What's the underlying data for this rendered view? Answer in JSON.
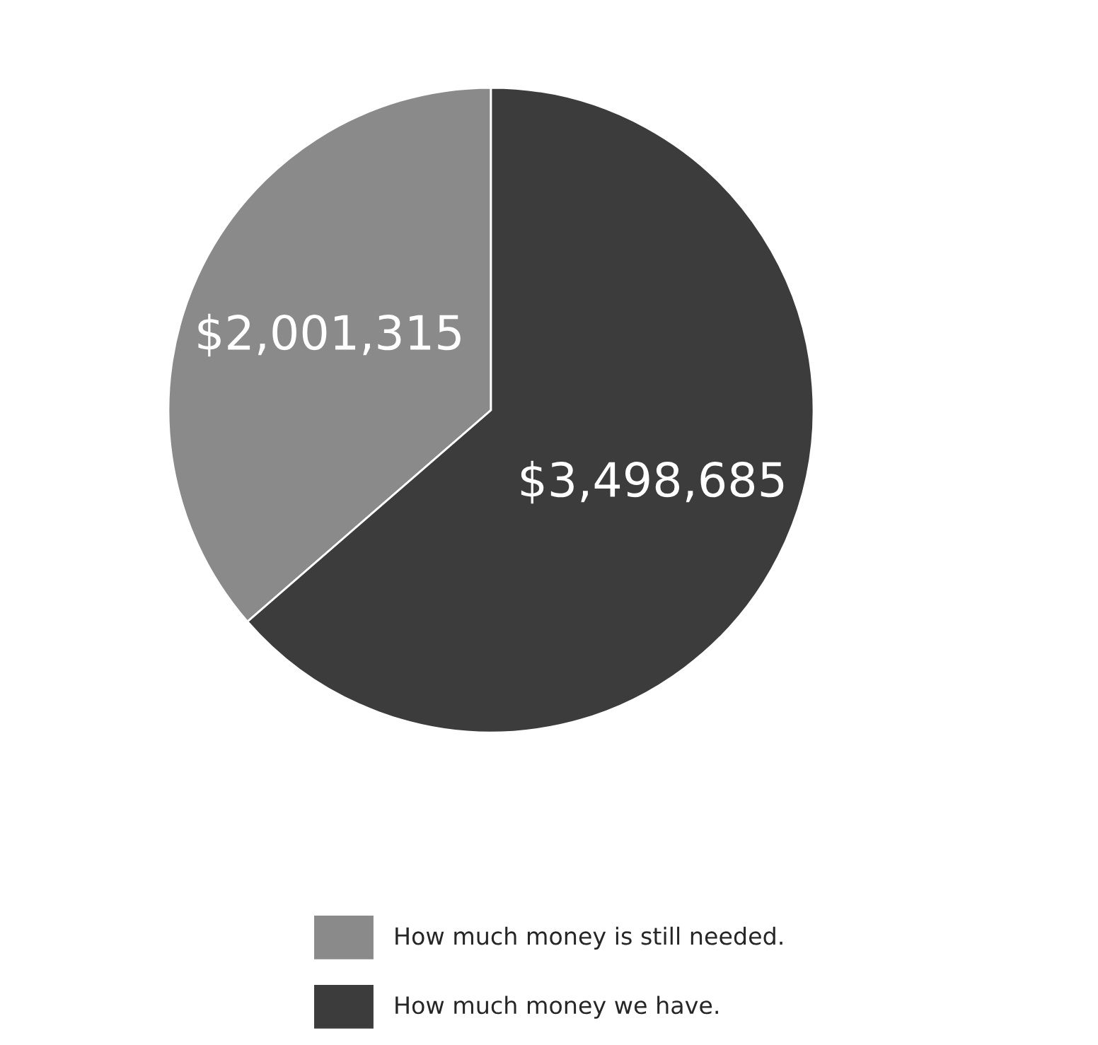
{
  "chart_data": {
    "type": "pie",
    "categories": [
      "How much money is still needed.",
      "How much money we have."
    ],
    "values": [
      2001315,
      3498685
    ],
    "colors": [
      "#8a8a8a",
      "#3c3c3c"
    ],
    "value_labels": [
      "$2,001,315",
      "$3,498,685"
    ],
    "legend": "bottom"
  }
}
